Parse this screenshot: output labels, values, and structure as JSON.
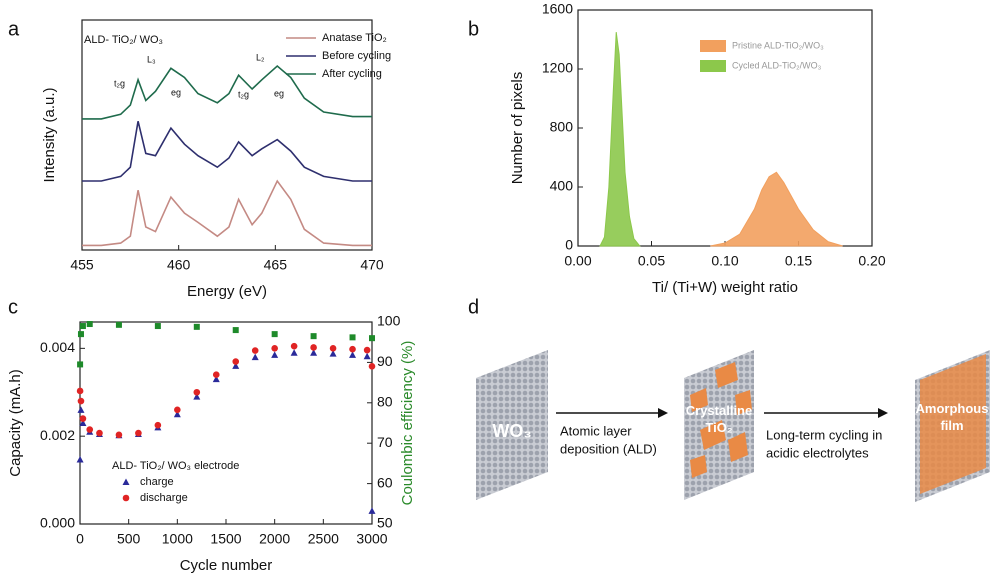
{
  "chart_data": [
    {
      "type": "line",
      "panel": "a",
      "xlabel": "Energy (eV)",
      "ylabel": "Intensity (a.u.)",
      "annotations": [
        "ALD- TiO₂/ WO₃",
        "t₂g",
        "L₃",
        "eg",
        "t₂g",
        "L₂",
        "eg"
      ],
      "x": [
        455,
        456,
        457,
        457.5,
        457.9,
        458.3,
        458.8,
        459.6,
        460.3,
        461,
        462,
        462.6,
        463.1,
        463.8,
        464.3,
        465.1,
        465.8,
        466.5,
        467.5,
        469,
        470
      ],
      "xlim": [
        455,
        470
      ],
      "xticks": [
        455,
        460,
        465,
        470
      ],
      "ylim": [
        0,
        10
      ],
      "legend": "upper right",
      "series": [
        {
          "name": "Anatase TiO₂",
          "color": "#c48a84",
          "values": [
            0.2,
            0.2,
            0.3,
            0.6,
            2.6,
            1.0,
            0.8,
            2.3,
            1.6,
            1.2,
            0.6,
            1.0,
            2.2,
            1.1,
            1.6,
            3.0,
            2.2,
            0.9,
            0.3,
            0.2,
            0.2
          ]
        },
        {
          "name": "Before cycling",
          "color": "#2e2f6e",
          "values": [
            3.0,
            3.0,
            3.2,
            3.6,
            5.6,
            4.2,
            4.1,
            5.3,
            4.6,
            4.1,
            3.6,
            4.0,
            4.7,
            4.1,
            4.4,
            4.8,
            4.3,
            3.6,
            3.2,
            3.0,
            3.0
          ]
        },
        {
          "name": "After cycling",
          "color": "#1f6b4c",
          "values": [
            5.7,
            5.7,
            5.9,
            6.3,
            7.4,
            6.5,
            6.9,
            7.9,
            7.5,
            6.8,
            6.4,
            6.8,
            7.6,
            7.0,
            7.4,
            8.0,
            7.5,
            6.6,
            6.0,
            5.8,
            5.8
          ]
        }
      ]
    },
    {
      "type": "area",
      "panel": "b",
      "xlabel": "Ti/ (Ti+W) weight ratio",
      "ylabel": "Number of pixels",
      "xlim": [
        0,
        0.2
      ],
      "xticks": [
        {
          "value": 0,
          "label": "0.00"
        },
        0.05,
        {
          "value": 0.1,
          "label": "0.10"
        },
        0.15,
        {
          "value": 0.2,
          "label": "0.20"
        }
      ],
      "ylim": [
        0,
        1600
      ],
      "yticks": [
        0,
        400,
        800,
        1200,
        1600
      ],
      "legend": "upper right",
      "series": [
        {
          "name": "Pristine ALD-TiO₂/WO₃",
          "color": "#f2a05e",
          "x": [
            0.09,
            0.1,
            0.11,
            0.12,
            0.125,
            0.13,
            0.135,
            0.14,
            0.15,
            0.16,
            0.17,
            0.18
          ],
          "values": [
            0,
            20,
            80,
            250,
            380,
            470,
            500,
            430,
            250,
            110,
            30,
            0
          ]
        },
        {
          "name": "Cycled ALD-TiO₂/WO₃",
          "color": "#8cc84b",
          "x": [
            0.015,
            0.018,
            0.021,
            0.024,
            0.026,
            0.028,
            0.03,
            0.032,
            0.035,
            0.038,
            0.042
          ],
          "values": [
            0,
            60,
            400,
            1050,
            1450,
            1300,
            900,
            500,
            200,
            50,
            0
          ]
        }
      ]
    },
    {
      "type": "scatter",
      "panel": "c",
      "xlabel": "Cycle number",
      "ylabel": "Capacity (mA.h)",
      "y2label": "Coulombic efficiency (%)",
      "y2_color": "#2a8a2a",
      "xlim": [
        0,
        3000
      ],
      "xticks": [
        0,
        500,
        1000,
        1500,
        2000,
        2500,
        3000
      ],
      "ylim": [
        0,
        0.0046
      ],
      "yticks": [
        {
          "value": 0,
          "label": "0.000"
        },
        0.002,
        0.004
      ],
      "y2lim": [
        50,
        100
      ],
      "y2ticks": [
        50,
        60,
        70,
        80,
        90,
        100
      ],
      "legend": "lower left",
      "legend_title": "ALD- TiO₂/ WO₃ electrode",
      "series": [
        {
          "name": "charge",
          "color": "#2a2a9a",
          "marker": "triangle",
          "x": [
            1,
            10,
            30,
            100,
            200,
            400,
            600,
            800,
            1000,
            1200,
            1400,
            1600,
            1800,
            2000,
            2200,
            2400,
            2600,
            2800,
            2950,
            3000
          ],
          "values": [
            0.00147,
            0.0026,
            0.0023,
            0.0021,
            0.00205,
            0.00202,
            0.00205,
            0.0022,
            0.0025,
            0.0029,
            0.0033,
            0.0036,
            0.0038,
            0.00385,
            0.0039,
            0.0039,
            0.00388,
            0.00385,
            0.00382,
            0.0003
          ]
        },
        {
          "name": "discharge",
          "color": "#e02424",
          "marker": "circle",
          "x": [
            1,
            10,
            30,
            100,
            200,
            400,
            600,
            800,
            1000,
            1200,
            1400,
            1600,
            1800,
            2000,
            2200,
            2400,
            2600,
            2800,
            2950,
            3000
          ],
          "values": [
            0.00303,
            0.0028,
            0.0024,
            0.00215,
            0.00207,
            0.00203,
            0.00207,
            0.00225,
            0.0026,
            0.003,
            0.0034,
            0.0037,
            0.00395,
            0.004,
            0.00405,
            0.00402,
            0.004,
            0.00398,
            0.00396,
            0.00359
          ]
        },
        {
          "color": "#1e8a2a",
          "marker": "square",
          "axis": "y2",
          "x": [
            1,
            10,
            30,
            100,
            400,
            800,
            1200,
            1600,
            2000,
            2400,
            2800,
            3000
          ],
          "values": [
            89.5,
            97,
            99,
            99.5,
            99.3,
            99,
            98.8,
            98,
            97,
            96.5,
            96.2,
            96
          ]
        }
      ]
    }
  ],
  "diagram": {
    "panel": "d",
    "blocks": [
      [
        "WO₃"
      ],
      [
        "Crystalline",
        "TiO₂"
      ],
      [
        "Amorphous",
        "film"
      ]
    ],
    "arrows": [
      [
        "Atomic layer",
        "deposition (ALD)"
      ],
      [
        "Long-term cycling in",
        "acidic electrolytes"
      ]
    ]
  }
}
